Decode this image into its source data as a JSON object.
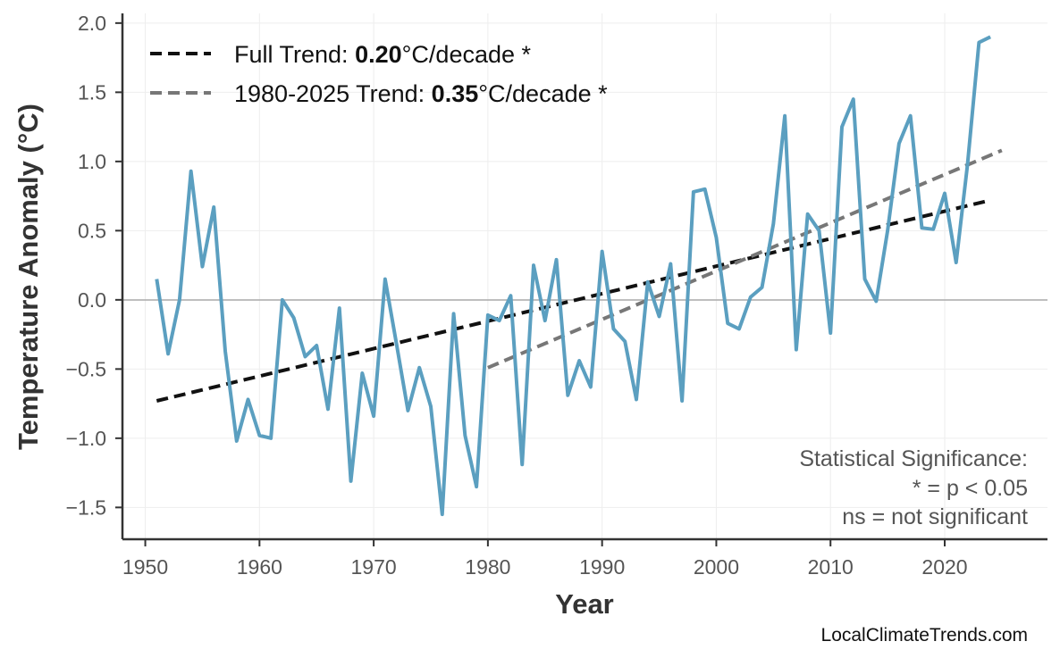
{
  "chart_data": {
    "type": "line",
    "xlabel": "Year",
    "ylabel": "Temperature Anomaly (°C)",
    "xlim": [
      1948,
      2029
    ],
    "ylim": [
      -1.73,
      2.07
    ],
    "grid": true,
    "x_ticks": [
      "1950",
      "1960",
      "1970",
      "1980",
      "1990",
      "2000",
      "2010",
      "2020"
    ],
    "y_ticks": [
      "−1.5",
      "−1.0",
      "−0.5",
      "0.0",
      "0.5",
      "1.0",
      "1.5",
      "2.0"
    ],
    "series": [
      {
        "color": "#5b9fc0",
        "x": [
          1951,
          1952,
          1953,
          1954,
          1955,
          1956,
          1957,
          1958,
          1959,
          1960,
          1961,
          1962,
          1963,
          1964,
          1965,
          1966,
          1967,
          1968,
          1969,
          1970,
          1971,
          1972,
          1973,
          1974,
          1975,
          1976,
          1977,
          1978,
          1979,
          1980,
          1981,
          1982,
          1983,
          1984,
          1985,
          1986,
          1987,
          1988,
          1989,
          1990,
          1991,
          1992,
          1993,
          1994,
          1995,
          1996,
          1997,
          1998,
          1999,
          2000,
          2001,
          2002,
          2003,
          2004,
          2005,
          2006,
          2007,
          2008,
          2009,
          2010,
          2011,
          2012,
          2013,
          2014,
          2015,
          2016,
          2017,
          2018,
          2019,
          2020,
          2021,
          2022,
          2023,
          2024
        ],
        "y": [
          0.15,
          -0.39,
          0.0,
          0.93,
          0.24,
          0.67,
          -0.37,
          -1.02,
          -0.72,
          -0.98,
          -1.0,
          0.0,
          -0.13,
          -0.41,
          -0.33,
          -0.79,
          -0.06,
          -1.31,
          -0.53,
          -0.84,
          0.15,
          -0.32,
          -0.8,
          -0.49,
          -0.77,
          -1.55,
          -0.1,
          -0.98,
          -1.35,
          -0.11,
          -0.15,
          0.03,
          -1.19,
          0.25,
          -0.15,
          0.29,
          -0.69,
          -0.44,
          -0.63,
          0.35,
          -0.21,
          -0.3,
          -0.72,
          0.13,
          -0.12,
          0.26,
          -0.73,
          0.78,
          0.8,
          0.45,
          -0.17,
          -0.21,
          0.02,
          0.09,
          0.55,
          1.33,
          -0.36,
          0.62,
          0.5,
          -0.24,
          1.25,
          1.45,
          0.15,
          -0.01,
          0.5,
          1.13,
          1.33,
          0.52,
          0.51,
          0.77,
          0.27,
          0.98,
          1.86,
          1.9
        ]
      }
    ],
    "trends": [
      {
        "label_prefix": "Full Trend: ",
        "value": "0.20",
        "label_suffix": "°C/decade *",
        "color": "#111111",
        "x": [
          1951,
          2024
        ],
        "y": [
          -0.73,
          0.72
        ]
      },
      {
        "label_prefix": "1980-2025 Trend: ",
        "value": "0.35",
        "label_suffix": "°C/decade *",
        "color": "#777777",
        "x": [
          1980,
          2025
        ],
        "y": [
          -0.49,
          1.08
        ]
      }
    ],
    "legend_position": "top-left",
    "annotation": [
      "Statistical Significance:",
      "* = p < 0.05",
      "ns = not significant"
    ]
  },
  "watermark": "LocalClimateTrends.com"
}
